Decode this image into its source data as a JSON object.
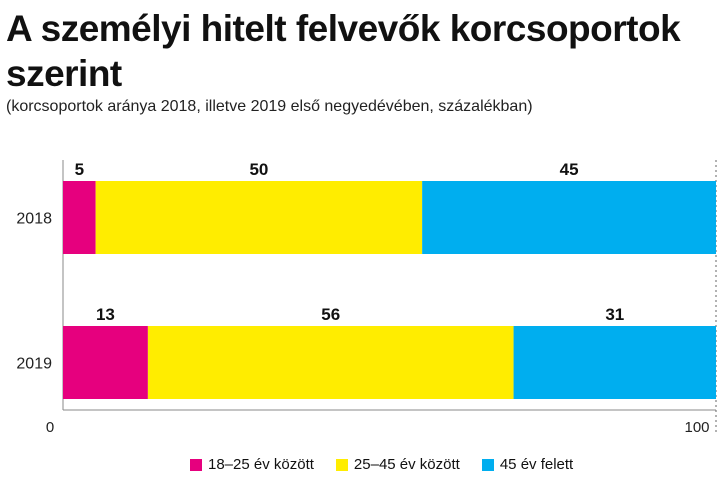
{
  "title": "A személyi hitelt felvevők korcsoportok szerint",
  "subtitle": "(korcsoportok aránya 2018, illetve 2019 első negyedévében, százalékban)",
  "chart_data": {
    "type": "bar",
    "orientation": "horizontal",
    "stacked": true,
    "categories": [
      "2018",
      "2019"
    ],
    "series": [
      {
        "name": "18–25 év között",
        "color": "#e6007e",
        "values": [
          5,
          13
        ]
      },
      {
        "name": "25–45 év között",
        "color": "#ffed00",
        "values": [
          50,
          56
        ]
      },
      {
        "name": "45 év felett",
        "color": "#00aeef",
        "values": [
          45,
          31
        ]
      }
    ],
    "xlim": [
      0,
      100
    ],
    "x_ticks": [
      "0",
      "100"
    ],
    "grid": false,
    "legend_position": "bottom"
  }
}
